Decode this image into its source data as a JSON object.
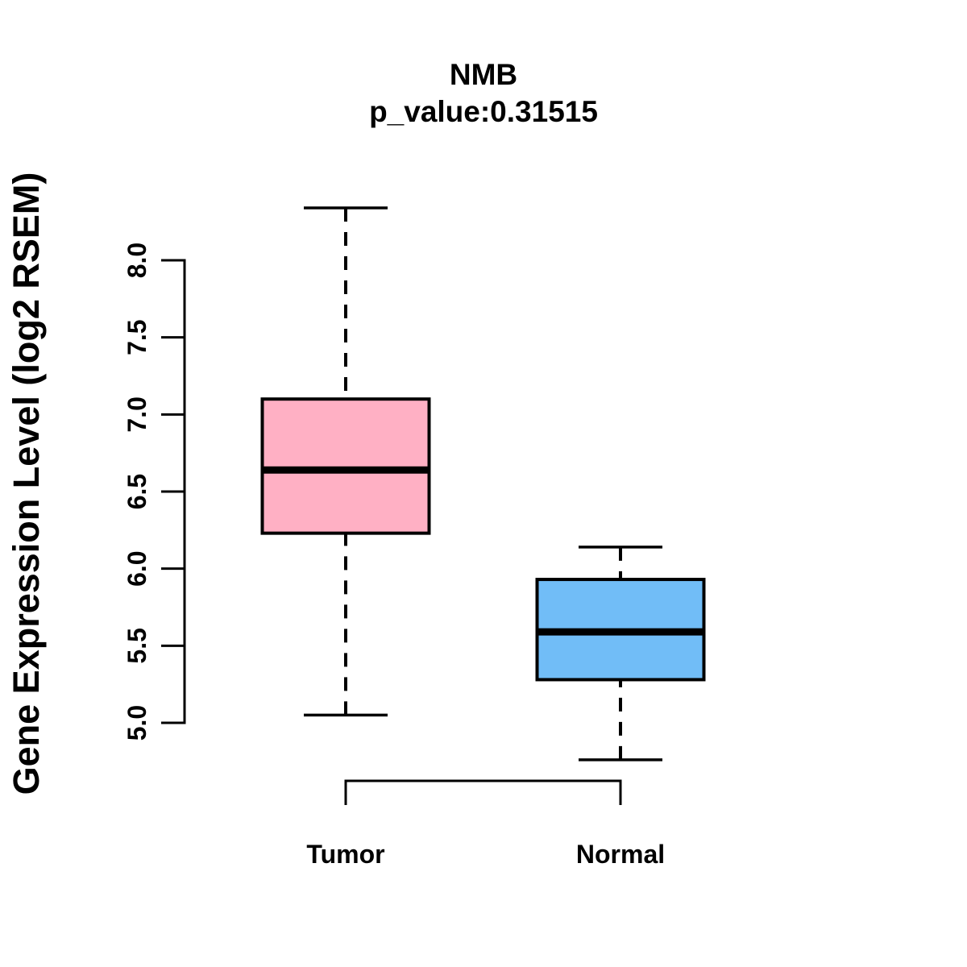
{
  "chart_data": {
    "type": "boxplot",
    "title": "NMB",
    "subtitle": "p_value:0.31515",
    "p_value": 0.31515,
    "ylabel": "Gene Expression Level (log2 RSEM)",
    "xlabel": "",
    "ylim": [
      4.6,
      8.45
    ],
    "yticks": [
      "5.0",
      "5.5",
      "6.0",
      "6.5",
      "7.0",
      "7.5",
      "8.0"
    ],
    "categories": [
      "Tumor",
      "Normal"
    ],
    "grid": "off",
    "legend": "none",
    "groups": [
      {
        "label": "Tumor",
        "fill_color": "#FFB0C4",
        "whisker_low": 5.05,
        "q1": 6.23,
        "median": 6.64,
        "q3": 7.1,
        "whisker_high": 8.34
      },
      {
        "label": "Normal",
        "fill_color": "#71BDF7",
        "whisker_low": 4.76,
        "q1": 5.28,
        "median": 5.59,
        "q3": 5.93,
        "whisker_high": 6.14
      }
    ],
    "colors": {
      "stroke": "#000000",
      "background": "#FFFFFF"
    }
  }
}
